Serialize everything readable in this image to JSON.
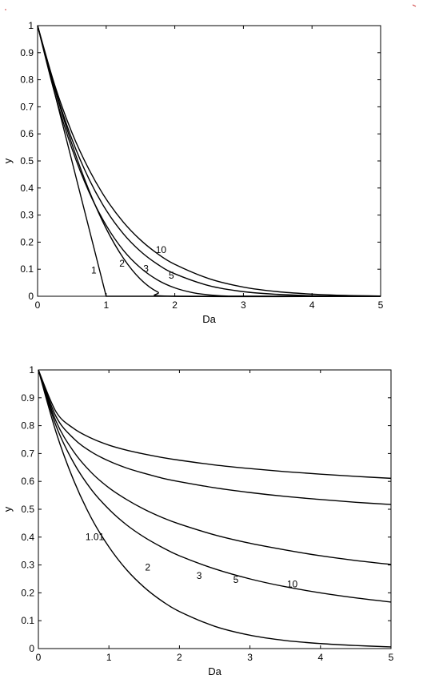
{
  "chart_data": [
    {
      "type": "line",
      "title": "",
      "xlabel": "Da",
      "ylabel": "y",
      "xlim": [
        0,
        5
      ],
      "ylim": [
        0,
        1
      ],
      "xticks": [
        "0",
        "1",
        "2",
        "3",
        "4",
        "5"
      ],
      "yticks": [
        "0",
        "0.1",
        "0.2",
        "0.3",
        "0.4",
        "0.5",
        "0.6",
        "0.7",
        "0.8",
        "0.9",
        "1"
      ],
      "grid": false,
      "series": [
        {
          "label": "1",
          "x": [
            0,
            0.5,
            1,
            5
          ],
          "y": [
            1,
            0.5,
            0,
            0
          ]
        },
        {
          "label": "2",
          "x": [
            0,
            0.25,
            0.5,
            0.75,
            1,
            1.25,
            1.5,
            1.75,
            2,
            5
          ],
          "y": [
            1,
            0.766,
            0.563,
            0.391,
            0.25,
            0.141,
            0.063,
            0.016,
            0,
            0
          ]
        },
        {
          "label": "3",
          "x": [
            0,
            0.25,
            0.5,
            0.75,
            1,
            1.25,
            1.5,
            1.75,
            2,
            2.25,
            2.5,
            2.75,
            3,
            5
          ],
          "y": [
            1,
            0.75,
            0.546,
            0.385,
            0.262,
            0.17,
            0.105,
            0.06,
            0.031,
            0.014,
            0.005,
            0.001,
            0,
            0
          ]
        },
        {
          "label": "5",
          "x": [
            0,
            0.25,
            0.5,
            0.75,
            1,
            1.25,
            1.5,
            1.75,
            2,
            2.5,
            3,
            3.5,
            4,
            4.5,
            5
          ],
          "y": [
            1,
            0.77,
            0.581,
            0.433,
            0.318,
            0.231,
            0.166,
            0.118,
            0.083,
            0.039,
            0.017,
            0.007,
            0.002,
            0.0005,
            0.0001
          ]
        },
        {
          "label": "10",
          "x": [
            0,
            0.25,
            0.5,
            0.75,
            1,
            1.25,
            1.5,
            1.75,
            2,
            2.5,
            3,
            3.5,
            4,
            4.5,
            5
          ],
          "y": [
            1,
            0.78,
            0.605,
            0.468,
            0.359,
            0.274,
            0.208,
            0.157,
            0.118,
            0.065,
            0.034,
            0.017,
            0.008,
            0.003,
            0.001
          ]
        }
      ],
      "annotations": [
        {
          "text": "1",
          "x": 0.82,
          "y": 0.085
        },
        {
          "text": "2",
          "x": 1.23,
          "y": 0.11
        },
        {
          "text": "3",
          "x": 1.58,
          "y": 0.09
        },
        {
          "text": "5",
          "x": 1.95,
          "y": 0.065
        },
        {
          "text": "10",
          "x": 1.8,
          "y": 0.16
        }
      ]
    },
    {
      "type": "line",
      "title": "",
      "xlabel": "Da",
      "ylabel": "y",
      "xlim": [
        0,
        5
      ],
      "ylim": [
        0,
        1
      ],
      "xticks": [
        "0",
        "1",
        "2",
        "3",
        "4",
        "5"
      ],
      "yticks": [
        "0",
        "0.1",
        "0.2",
        "0.3",
        "0.4",
        "0.5",
        "0.6",
        "0.7",
        "0.8",
        "0.9",
        "1"
      ],
      "grid": false,
      "series": [
        {
          "label": "1.01",
          "x": [
            0,
            0.25,
            0.5,
            0.75,
            1,
            1.25,
            1.5,
            1.75,
            2,
            2.5,
            3,
            3.5,
            4,
            4.5,
            5
          ],
          "y": [
            1,
            0.777,
            0.604,
            0.469,
            0.365,
            0.283,
            0.22,
            0.171,
            0.133,
            0.08,
            0.048,
            0.029,
            0.018,
            0.011,
            0.006
          ]
        },
        {
          "label": "2",
          "x": [
            0,
            0.25,
            0.5,
            0.75,
            1,
            1.25,
            1.5,
            1.75,
            2,
            2.5,
            3,
            3.5,
            4,
            4.5,
            5
          ],
          "y": [
            1,
            0.8,
            0.667,
            0.571,
            0.5,
            0.444,
            0.4,
            0.364,
            0.333,
            0.286,
            0.25,
            0.222,
            0.2,
            0.182,
            0.167
          ]
        },
        {
          "label": "3",
          "x": [
            0,
            0.25,
            0.5,
            0.75,
            1,
            1.25,
            1.5,
            1.75,
            2,
            2.5,
            3,
            3.5,
            4,
            4.5,
            5
          ],
          "y": [
            1,
            0.816,
            0.707,
            0.632,
            0.577,
            0.535,
            0.5,
            0.471,
            0.447,
            0.408,
            0.378,
            0.354,
            0.333,
            0.316,
            0.302
          ]
        },
        {
          "label": "5",
          "x": [
            0,
            0.25,
            0.5,
            0.75,
            1,
            1.25,
            1.5,
            1.75,
            2,
            2.5,
            3,
            3.5,
            4,
            4.5,
            5
          ],
          "y": [
            1,
            0.833,
            0.754,
            0.706,
            0.673,
            0.648,
            0.629,
            0.612,
            0.599,
            0.577,
            0.56,
            0.546,
            0.535,
            0.525,
            0.517
          ]
        },
        {
          "label": "10",
          "x": [
            0,
            0.25,
            0.5,
            0.75,
            1,
            1.25,
            1.5,
            1.75,
            2,
            2.5,
            3,
            3.5,
            4,
            4.5,
            5
          ],
          "y": [
            1,
            0.85,
            0.79,
            0.755,
            0.73,
            0.712,
            0.698,
            0.686,
            0.676,
            0.659,
            0.646,
            0.635,
            0.626,
            0.618,
            0.611
          ]
        }
      ],
      "display_y_map": "fitted",
      "annotations": [
        {
          "text": "1.01",
          "x": 0.8,
          "y": 0.39
        },
        {
          "text": "2",
          "x": 1.55,
          "y": 0.28
        },
        {
          "text": "3",
          "x": 2.28,
          "y": 0.25
        },
        {
          "text": "5",
          "x": 2.8,
          "y": 0.235
        },
        {
          "text": "10",
          "x": 3.6,
          "y": 0.22
        }
      ]
    }
  ]
}
